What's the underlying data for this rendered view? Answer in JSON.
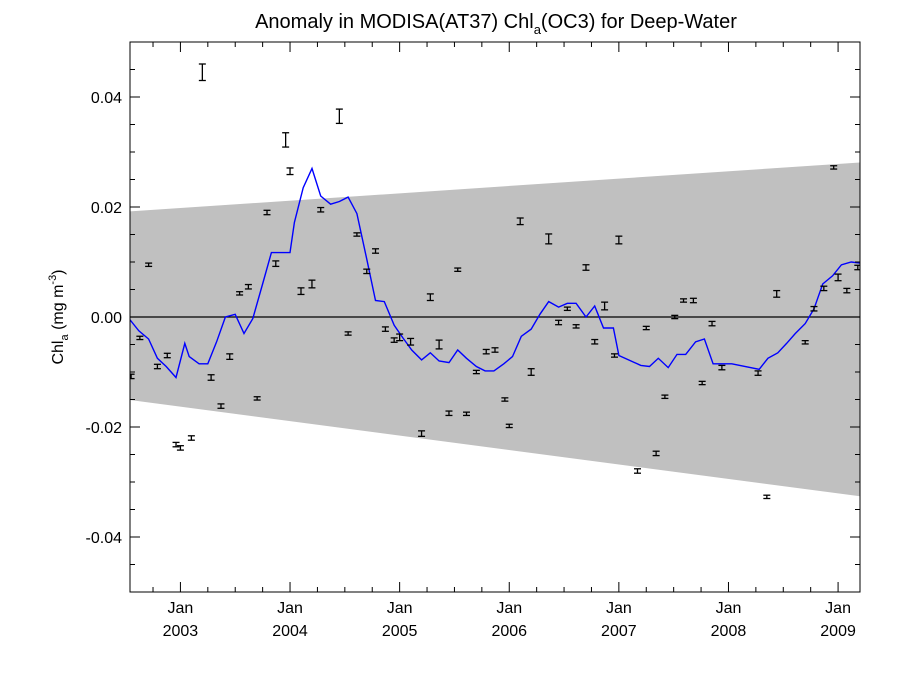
{
  "chart_data": {
    "type": "line",
    "title": {
      "prefix": "Anomaly in MODISA(AT37) Chl",
      "sub": "a",
      "suffix": "(OC3) for Deep-Water"
    },
    "ylabel": {
      "prefix": "Chl",
      "sub": "a",
      "mid": " (mg m",
      "sup": "-3",
      "suffix": ")"
    },
    "xlim": [
      2002.54,
      2009.2
    ],
    "ylim": [
      -0.05,
      0.05
    ],
    "y_ticks": [
      {
        "value": -0.04,
        "label": "-0.04"
      },
      {
        "value": -0.02,
        "label": "-0.02"
      },
      {
        "value": 0.0,
        "label": "0.00"
      },
      {
        "value": 0.02,
        "label": "0.02"
      },
      {
        "value": 0.04,
        "label": "0.04"
      }
    ],
    "x_ticks": [
      {
        "value": 2003.0,
        "month": "Jan",
        "year": "2003"
      },
      {
        "value": 2004.0,
        "month": "Jan",
        "year": "2004"
      },
      {
        "value": 2005.0,
        "month": "Jan",
        "year": "2005"
      },
      {
        "value": 2006.0,
        "month": "Jan",
        "year": "2006"
      },
      {
        "value": 2007.0,
        "month": "Jan",
        "year": "2007"
      },
      {
        "value": 2008.0,
        "month": "Jan",
        "year": "2008"
      },
      {
        "value": 2009.0,
        "month": "Jan",
        "year": "2009"
      }
    ],
    "band": {
      "color": "#c0c0c0",
      "upper": [
        [
          2002.54,
          0.0192
        ],
        [
          2009.2,
          0.0281
        ]
      ],
      "lower": [
        [
          2002.54,
          -0.0151
        ],
        [
          2009.2,
          -0.0326
        ]
      ]
    },
    "zero_line": {
      "value": 0.0,
      "color": "#000000"
    },
    "series": [
      {
        "kind": "line",
        "color": "#0000ff",
        "points": [
          [
            2002.54,
            -0.0005
          ],
          [
            2002.62,
            -0.0025
          ],
          [
            2002.71,
            -0.004
          ],
          [
            2002.79,
            -0.0075
          ],
          [
            2002.87,
            -0.009
          ],
          [
            2002.96,
            -0.011
          ],
          [
            2003.04,
            -0.0048
          ],
          [
            2003.08,
            -0.0072
          ],
          [
            2003.17,
            -0.0085
          ],
          [
            2003.25,
            -0.0085
          ],
          [
            2003.33,
            -0.0045
          ],
          [
            2003.41,
            0.0
          ],
          [
            2003.5,
            0.0005
          ],
          [
            2003.58,
            -0.003
          ],
          [
            2003.66,
            -0.0003
          ],
          [
            2003.75,
            0.006
          ],
          [
            2003.83,
            0.0117
          ],
          [
            2003.91,
            0.0117
          ],
          [
            2004.0,
            0.0117
          ],
          [
            2004.04,
            0.0172
          ],
          [
            2004.12,
            0.0235
          ],
          [
            2004.2,
            0.027
          ],
          [
            2004.28,
            0.022
          ],
          [
            2004.37,
            0.0205
          ],
          [
            2004.45,
            0.021
          ],
          [
            2004.53,
            0.0218
          ],
          [
            2004.61,
            0.0188
          ],
          [
            2004.7,
            0.0105
          ],
          [
            2004.78,
            0.003
          ],
          [
            2004.86,
            0.0028
          ],
          [
            2004.95,
            -0.0015
          ],
          [
            2005.03,
            -0.0038
          ],
          [
            2005.11,
            -0.006
          ],
          [
            2005.2,
            -0.0078
          ],
          [
            2005.28,
            -0.0065
          ],
          [
            2005.36,
            -0.008
          ],
          [
            2005.45,
            -0.0083
          ],
          [
            2005.53,
            -0.006
          ],
          [
            2005.61,
            -0.0075
          ],
          [
            2005.7,
            -0.009
          ],
          [
            2005.78,
            -0.0098
          ],
          [
            2005.86,
            -0.0098
          ],
          [
            2005.95,
            -0.0085
          ],
          [
            2006.03,
            -0.0072
          ],
          [
            2006.11,
            -0.0035
          ],
          [
            2006.2,
            -0.0022
          ],
          [
            2006.28,
            0.0005
          ],
          [
            2006.36,
            0.0028
          ],
          [
            2006.45,
            0.0018
          ],
          [
            2006.53,
            0.0025
          ],
          [
            2006.61,
            0.0025
          ],
          [
            2006.7,
            0.0
          ],
          [
            2006.78,
            0.002
          ],
          [
            2006.86,
            -0.002
          ],
          [
            2006.95,
            -0.002
          ],
          [
            2007.0,
            -0.007
          ],
          [
            2007.2,
            -0.0088
          ],
          [
            2007.28,
            -0.009
          ],
          [
            2007.36,
            -0.0075
          ],
          [
            2007.45,
            -0.0092
          ],
          [
            2007.53,
            -0.0068
          ],
          [
            2007.61,
            -0.0068
          ],
          [
            2007.7,
            -0.0045
          ],
          [
            2007.78,
            -0.004
          ],
          [
            2007.86,
            -0.0085
          ],
          [
            2007.95,
            -0.0085
          ],
          [
            2008.03,
            -0.0085
          ],
          [
            2008.28,
            -0.0095
          ],
          [
            2008.36,
            -0.0075
          ],
          [
            2008.45,
            -0.0065
          ],
          [
            2008.53,
            -0.0048
          ],
          [
            2008.61,
            -0.003
          ],
          [
            2008.7,
            -0.0012
          ],
          [
            2008.78,
            0.0015
          ],
          [
            2008.86,
            0.006
          ],
          [
            2008.95,
            0.0075
          ],
          [
            2009.03,
            0.0095
          ],
          [
            2009.12,
            0.01
          ],
          [
            2009.2,
            0.0098
          ]
        ]
      },
      {
        "kind": "errorbar",
        "color": "#000000",
        "points": [
          [
            2002.55,
            -0.0108,
            0.0004
          ],
          [
            2002.63,
            -0.0038,
            0.0003
          ],
          [
            2002.71,
            0.0095,
            0.0003
          ],
          [
            2002.79,
            -0.009,
            0.0004
          ],
          [
            2002.88,
            -0.007,
            0.0004
          ],
          [
            2002.96,
            -0.0232,
            0.0004
          ],
          [
            2003.0,
            -0.0238,
            0.0004
          ],
          [
            2003.1,
            -0.022,
            0.0004
          ],
          [
            2003.2,
            0.0445,
            0.0015
          ],
          [
            2003.28,
            -0.011,
            0.0005
          ],
          [
            2003.37,
            -0.0162,
            0.0004
          ],
          [
            2003.45,
            -0.0072,
            0.0005
          ],
          [
            2003.54,
            0.0043,
            0.0003
          ],
          [
            2003.62,
            0.0055,
            0.0004
          ],
          [
            2003.7,
            -0.0148,
            0.0003
          ],
          [
            2003.79,
            0.019,
            0.0004
          ],
          [
            2003.87,
            0.0097,
            0.0005
          ],
          [
            2003.96,
            0.0322,
            0.0013
          ],
          [
            2004.0,
            0.0265,
            0.0006
          ],
          [
            2004.1,
            0.0047,
            0.0006
          ],
          [
            2004.2,
            0.006,
            0.0007
          ],
          [
            2004.28,
            0.0195,
            0.0004
          ],
          [
            2004.45,
            0.0365,
            0.0013
          ],
          [
            2004.53,
            -0.003,
            0.0003
          ],
          [
            2004.61,
            0.015,
            0.0003
          ],
          [
            2004.7,
            0.0083,
            0.0004
          ],
          [
            2004.78,
            0.012,
            0.0004
          ],
          [
            2004.87,
            -0.0022,
            0.0004
          ],
          [
            2004.95,
            -0.0042,
            0.0004
          ],
          [
            2005.0,
            -0.0037,
            0.0006
          ],
          [
            2005.1,
            -0.0045,
            0.0006
          ],
          [
            2005.2,
            -0.0212,
            0.0005
          ],
          [
            2005.28,
            0.0036,
            0.0006
          ],
          [
            2005.36,
            -0.005,
            0.0008
          ],
          [
            2005.45,
            -0.0175,
            0.0004
          ],
          [
            2005.53,
            0.0086,
            0.0003
          ],
          [
            2005.61,
            -0.0176,
            0.0003
          ],
          [
            2005.7,
            -0.01,
            0.0003
          ],
          [
            2005.79,
            -0.0063,
            0.0004
          ],
          [
            2005.87,
            -0.006,
            0.0004
          ],
          [
            2005.96,
            -0.015,
            0.0003
          ],
          [
            2006.0,
            -0.0198,
            0.0003
          ],
          [
            2006.1,
            0.0174,
            0.0006
          ],
          [
            2006.2,
            -0.01,
            0.0006
          ],
          [
            2006.36,
            0.0142,
            0.0009
          ],
          [
            2006.45,
            -0.001,
            0.0004
          ],
          [
            2006.53,
            0.0015,
            0.0003
          ],
          [
            2006.61,
            -0.0017,
            0.0003
          ],
          [
            2006.7,
            0.009,
            0.0005
          ],
          [
            2006.78,
            -0.0045,
            0.0004
          ],
          [
            2006.87,
            0.002,
            0.0007
          ],
          [
            2006.96,
            -0.007,
            0.0003
          ],
          [
            2007.0,
            0.014,
            0.0007
          ],
          [
            2007.17,
            -0.028,
            0.0004
          ],
          [
            2007.25,
            -0.002,
            0.0003
          ],
          [
            2007.34,
            -0.0248,
            0.0004
          ],
          [
            2007.42,
            -0.0145,
            0.0003
          ],
          [
            2007.51,
            0.0,
            0.0003
          ],
          [
            2007.59,
            0.003,
            0.0003
          ],
          [
            2007.68,
            0.003,
            0.0004
          ],
          [
            2007.76,
            -0.012,
            0.0003
          ],
          [
            2007.85,
            -0.0012,
            0.0004
          ],
          [
            2007.94,
            -0.0092,
            0.0004
          ],
          [
            2008.27,
            -0.0102,
            0.0004
          ],
          [
            2008.35,
            -0.0327,
            0.0003
          ],
          [
            2008.44,
            0.0042,
            0.0006
          ],
          [
            2008.7,
            -0.0046,
            0.0003
          ],
          [
            2008.78,
            0.0015,
            0.0004
          ],
          [
            2008.87,
            0.0052,
            0.0004
          ],
          [
            2008.96,
            0.0272,
            0.0003
          ],
          [
            2009.0,
            0.0072,
            0.0006
          ],
          [
            2009.08,
            0.0048,
            0.0004
          ],
          [
            2009.18,
            0.009,
            0.0004
          ]
        ]
      }
    ]
  }
}
